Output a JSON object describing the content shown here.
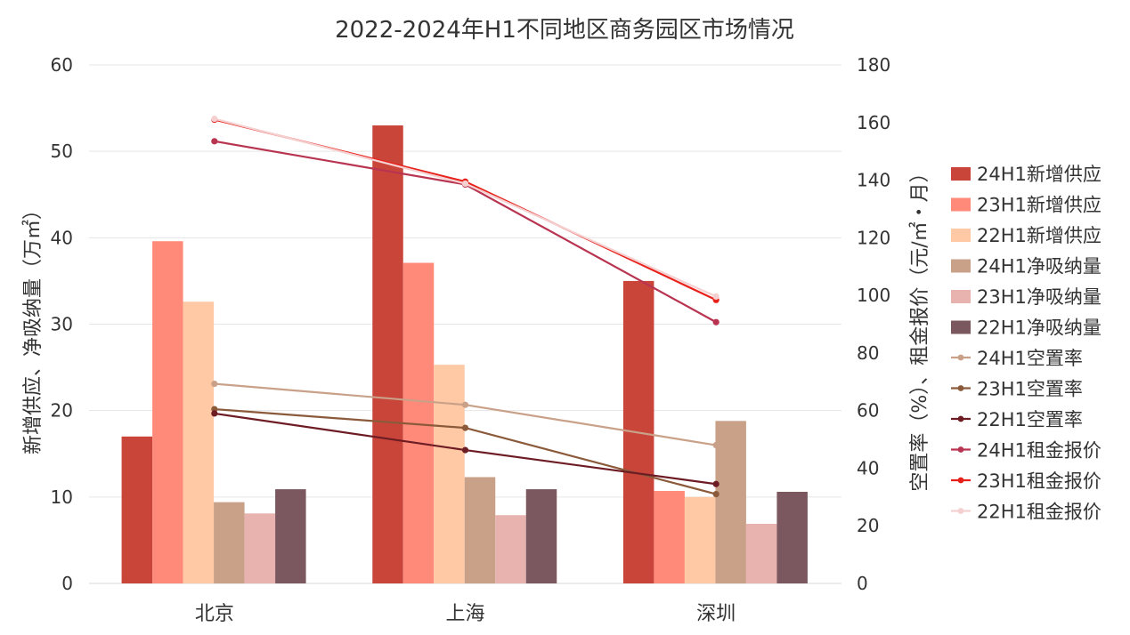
{
  "chart_data": {
    "type": "bar",
    "title": "2022-2024年H1不同地区商务园区市场情况",
    "categories": [
      "北京",
      "上海",
      "深圳"
    ],
    "ylabel_left": "新增供应、净吸纳量（万㎡）",
    "ylabel_right": "空置率（%）、租金报价（元/㎡・月）",
    "ylim_left": [
      0,
      60
    ],
    "ylim_right": [
      0,
      180
    ],
    "yticks_left": [
      "0",
      "10",
      "20",
      "30",
      "40",
      "50",
      "60"
    ],
    "yticks_right": [
      "0",
      "20",
      "40",
      "60",
      "80",
      "100",
      "120",
      "140",
      "160",
      "180"
    ],
    "grid": true,
    "legend_position": "right",
    "bar_series": [
      {
        "name": "24H1新增供应",
        "values": [
          17.0,
          53.0,
          35.0
        ],
        "color": "#C9453A"
      },
      {
        "name": "23H1新增供应",
        "values": [
          39.6,
          37.1,
          10.7
        ],
        "color": "#FF8A7A"
      },
      {
        "name": "22H1新增供应",
        "values": [
          32.6,
          25.3,
          10.0
        ],
        "color": "#FFC9A6"
      },
      {
        "name": "24H1净吸纳量",
        "values": [
          9.4,
          12.3,
          18.8
        ],
        "color": "#C9A088"
      },
      {
        "name": "23H1净吸纳量",
        "values": [
          8.1,
          7.9,
          6.9
        ],
        "color": "#E8B3AE"
      },
      {
        "name": "22H1净吸纳量",
        "values": [
          10.9,
          10.9,
          10.6
        ],
        "color": "#7B5860"
      }
    ],
    "line_series": [
      {
        "name": "24H1空置率",
        "values": [
          69.3,
          62.0,
          48.0
        ],
        "color": "#C9A088"
      },
      {
        "name": "23H1空置率",
        "values": [
          60.5,
          54.0,
          31.0
        ],
        "color": "#8B5A3A"
      },
      {
        "name": "22H1空置率",
        "values": [
          59.0,
          46.3,
          34.5
        ],
        "color": "#6E1C24"
      },
      {
        "name": "24H1租金报价",
        "values": [
          153.5,
          138.5,
          90.7
        ],
        "color": "#B83450"
      },
      {
        "name": "23H1租金报价",
        "values": [
          161.0,
          139.5,
          98.4
        ],
        "color": "#E8201A"
      },
      {
        "name": "22H1租金报价",
        "values": [
          161.3,
          138.8,
          99.6
        ],
        "color": "#F5D0D0"
      }
    ]
  }
}
